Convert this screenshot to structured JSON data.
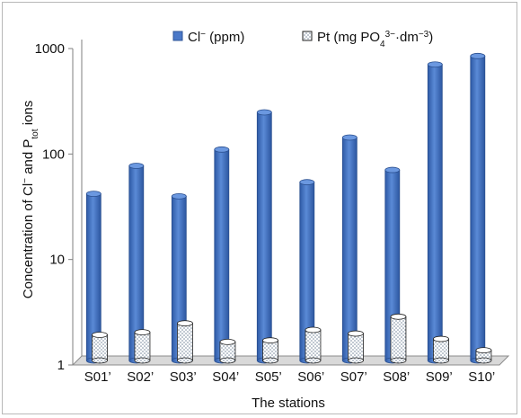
{
  "chart_data": {
    "type": "bar",
    "y_scale": "log",
    "ylim": [
      1,
      1000
    ],
    "y_ticks": [
      "1",
      "10",
      "100",
      "1000"
    ],
    "xlabel": "The stations",
    "ylabel": {
      "prefix": "Concentration of Cl",
      "sup1": "−",
      "mid": " and P",
      "sub": "tot",
      "suffix": " ions"
    },
    "categories": [
      "S01’",
      "S02’",
      "S03’",
      "S04’",
      "S05’",
      "S06’",
      "S07’",
      "S08’",
      "S09’",
      "S10’"
    ],
    "series": [
      {
        "name": "Cl⁻ (ppm)",
        "legend": {
          "base": "Cl",
          "sup": "−",
          "rest": " (ppm)"
        },
        "color": "#4472c4",
        "values": [
          38,
          70,
          36,
          100,
          225,
          49,
          130,
          64,
          640,
          770
        ]
      },
      {
        "name": "Pt (mg PO₄³⁻·dm⁻³)",
        "legend": {
          "a": "Pt (mg PO",
          "sub": "4",
          "sup": "3−",
          "b": "·dm",
          "sup2": "−3",
          "c": ")"
        },
        "pattern": "dotted",
        "values": [
          1.75,
          1.85,
          2.25,
          1.5,
          1.55,
          1.95,
          1.8,
          2.6,
          1.6,
          1.25
        ]
      }
    ],
    "legend_position": "top",
    "grid": false
  }
}
